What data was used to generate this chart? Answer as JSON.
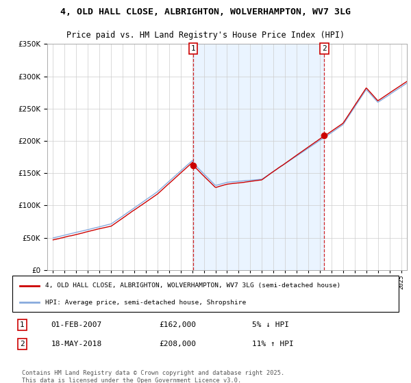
{
  "title1": "4, OLD HALL CLOSE, ALBRIGHTON, WOLVERHAMPTON, WV7 3LG",
  "title2": "Price paid vs. HM Land Registry's House Price Index (HPI)",
  "background_color": "#ffffff",
  "grid_color": "#cccccc",
  "line1_color": "#cc0000",
  "line2_color": "#88aadd",
  "shade_color": "#ddeeff",
  "marker1_year": 2007.08,
  "marker1_price": 162000,
  "marker1_date": "01-FEB-2007",
  "marker1_amount": "£162,000",
  "marker1_pct": "5% ↓ HPI",
  "marker2_year": 2018.38,
  "marker2_price": 208000,
  "marker2_date": "18-MAY-2018",
  "marker2_amount": "£208,000",
  "marker2_pct": "11% ↑ HPI",
  "legend1": "4, OLD HALL CLOSE, ALBRIGHTON, WOLVERHAMPTON, WV7 3LG (semi-detached house)",
  "legend2": "HPI: Average price, semi-detached house, Shropshire",
  "footer": "Contains HM Land Registry data © Crown copyright and database right 2025.\nThis data is licensed under the Open Government Licence v3.0.",
  "ylim": [
    0,
    350000
  ],
  "xlim_start": 1994.5,
  "xlim_end": 2025.5,
  "yticks": [
    0,
    50000,
    100000,
    150000,
    200000,
    250000,
    300000,
    350000
  ]
}
